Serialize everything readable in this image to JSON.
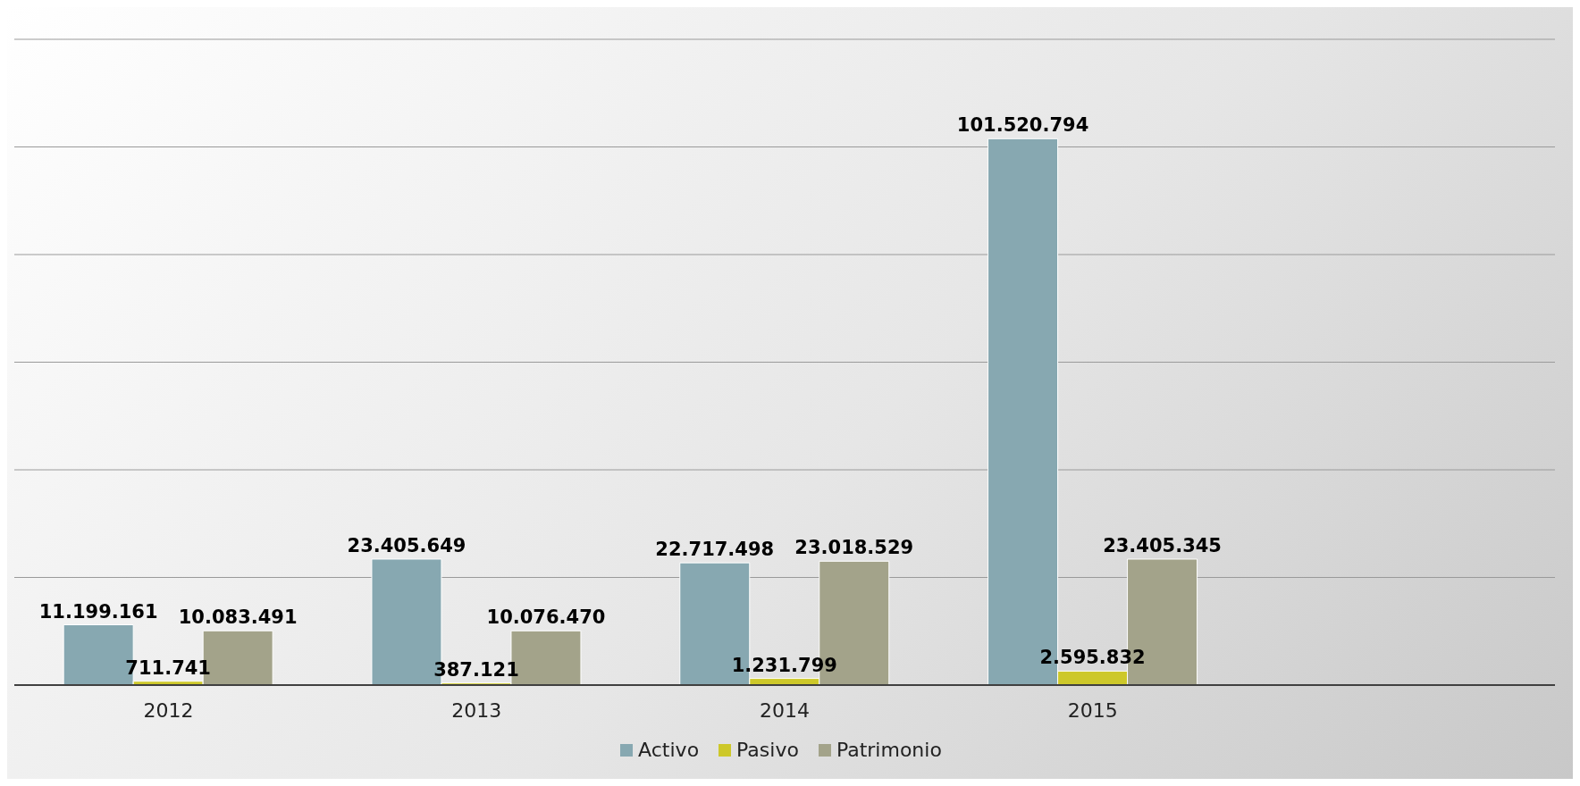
{
  "chart_data": {
    "type": "bar",
    "categories": [
      "2012",
      "2013",
      "2014",
      "2015",
      null
    ],
    "series": [
      {
        "name": "Activo",
        "color": "#87a8b1",
        "values": [
          11199161,
          23405649,
          22717498,
          101520794,
          null
        ],
        "value_labels": [
          "11.199.161",
          "23.405.649",
          "22.717.498",
          "101.520.794",
          null
        ]
      },
      {
        "name": "Pasivo",
        "color": "#cdc82a",
        "values": [
          711741,
          387121,
          1231799,
          2595832,
          null
        ],
        "value_labels": [
          "711.741",
          "387.121",
          "1.231.799",
          "2.595.832",
          null
        ]
      },
      {
        "name": "Patrimonio",
        "color": "#a3a38a",
        "values": [
          10083491,
          10076470,
          23018529,
          23405345,
          null
        ],
        "value_labels": [
          "10.083.491",
          "10.076.470",
          "23.018.529",
          "23.405.345",
          null
        ]
      }
    ],
    "ylim": [
      0,
      120000000
    ],
    "yticks": [
      {
        "value": 0,
        "label": null
      },
      {
        "value": 20000000,
        "label": null
      },
      {
        "value": 40000000,
        "label": null
      },
      {
        "value": 60000000,
        "label": null
      },
      {
        "value": 80000000,
        "label": null
      },
      {
        "value": 100000000,
        "label": null
      },
      {
        "value": 120000000,
        "label": null
      }
    ],
    "tick_labels": "x",
    "grid": "y",
    "legend": "bottom"
  }
}
